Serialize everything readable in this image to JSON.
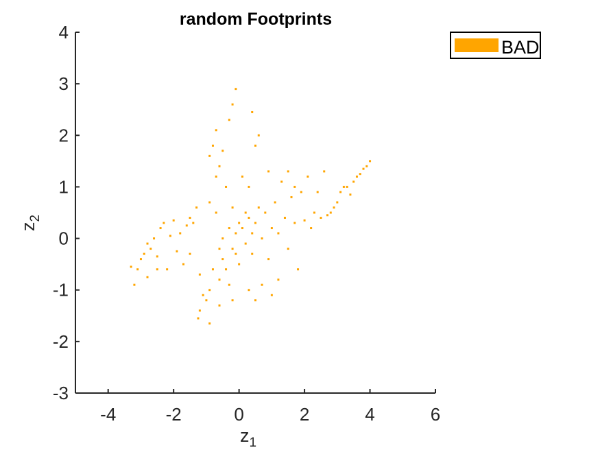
{
  "chart_data": {
    "type": "scatter",
    "title": "random Footprints",
    "xlabel": "z",
    "xlabel_sub": "1",
    "ylabel": "z",
    "ylabel_sub": "2",
    "xlim": [
      -5,
      6
    ],
    "ylim": [
      -3,
      4
    ],
    "xticks": [
      -4,
      -2,
      0,
      2,
      4,
      6
    ],
    "yticks": [
      -3,
      -2,
      -1,
      0,
      1,
      2,
      3,
      4
    ],
    "xtick_labels": [
      "-4",
      "-2",
      "0",
      "2",
      "4",
      "6"
    ],
    "ytick_labels": [
      "-3",
      "-2",
      "-1",
      "0",
      "1",
      "2",
      "3",
      "4"
    ],
    "grid": false,
    "legend": {
      "position": "top-right",
      "entries": [
        "BAD"
      ]
    },
    "series": [
      {
        "name": "BAD",
        "color": "#FFA500",
        "points": [
          [
            -3.3,
            -0.55
          ],
          [
            -3.2,
            -0.9
          ],
          [
            -3.1,
            -0.6
          ],
          [
            -3.0,
            -0.4
          ],
          [
            -2.9,
            -0.3
          ],
          [
            -2.8,
            -0.1
          ],
          [
            -2.8,
            -0.75
          ],
          [
            -2.7,
            -0.2
          ],
          [
            -2.6,
            0.0
          ],
          [
            -2.5,
            -0.35
          ],
          [
            -2.4,
            0.2
          ],
          [
            -2.3,
            0.3
          ],
          [
            -2.2,
            -0.6
          ],
          [
            -2.1,
            0.05
          ],
          [
            -2.0,
            0.35
          ],
          [
            -1.9,
            -0.25
          ],
          [
            -1.8,
            0.1
          ],
          [
            -1.7,
            -0.5
          ],
          [
            -1.6,
            0.25
          ],
          [
            -1.5,
            0.4
          ],
          [
            -1.4,
            0.3
          ],
          [
            -1.3,
            0.6
          ],
          [
            -1.2,
            -0.7
          ],
          [
            -1.1,
            -1.1
          ],
          [
            -1.2,
            -1.4
          ],
          [
            -1.25,
            -1.55
          ],
          [
            -1.0,
            -1.2
          ],
          [
            -0.9,
            -1.0
          ],
          [
            -0.8,
            -0.6
          ],
          [
            -0.6,
            -0.8
          ],
          [
            -0.5,
            -0.4
          ],
          [
            -0.3,
            -0.9
          ],
          [
            -0.2,
            -0.2
          ],
          [
            -0.1,
            0.1
          ],
          [
            0.0,
            -0.5
          ],
          [
            0.1,
            0.2
          ],
          [
            0.2,
            -0.1
          ],
          [
            0.3,
            0.4
          ],
          [
            0.4,
            -0.3
          ],
          [
            0.5,
            0.3
          ],
          [
            0.6,
            0.6
          ],
          [
            0.7,
            0.0
          ],
          [
            0.8,
            0.5
          ],
          [
            0.9,
            -0.4
          ],
          [
            1.0,
            0.2
          ],
          [
            1.1,
            0.7
          ],
          [
            1.2,
            0.1
          ],
          [
            1.4,
            0.4
          ],
          [
            1.5,
            -0.2
          ],
          [
            1.6,
            0.8
          ],
          [
            1.7,
            0.3
          ],
          [
            1.8,
            -0.6
          ],
          [
            1.9,
            0.9
          ],
          [
            2.0,
            0.35
          ],
          [
            2.1,
            1.2
          ],
          [
            2.2,
            0.2
          ],
          [
            2.3,
            0.5
          ],
          [
            2.4,
            0.9
          ],
          [
            2.5,
            0.4
          ],
          [
            2.6,
            1.3
          ],
          [
            2.7,
            0.45
          ],
          [
            2.8,
            0.5
          ],
          [
            2.9,
            0.6
          ],
          [
            3.0,
            0.7
          ],
          [
            3.1,
            0.9
          ],
          [
            3.2,
            1.0
          ],
          [
            3.3,
            1.0
          ],
          [
            3.4,
            0.85
          ],
          [
            3.5,
            1.1
          ],
          [
            3.6,
            1.2
          ],
          [
            3.7,
            1.25
          ],
          [
            3.8,
            1.35
          ],
          [
            3.9,
            1.4
          ],
          [
            4.0,
            1.5
          ],
          [
            -0.9,
            1.6
          ],
          [
            -0.8,
            1.8
          ],
          [
            -0.7,
            2.1
          ],
          [
            -0.6,
            1.4
          ],
          [
            -0.5,
            1.7
          ],
          [
            -0.7,
            1.2
          ],
          [
            -0.4,
            1.0
          ],
          [
            -0.3,
            2.3
          ],
          [
            -0.2,
            2.6
          ],
          [
            -0.1,
            2.9
          ],
          [
            0.4,
            2.45
          ],
          [
            0.5,
            1.8
          ],
          [
            0.6,
            2.0
          ],
          [
            0.1,
            1.2
          ],
          [
            0.3,
            1.0
          ],
          [
            -0.2,
            0.6
          ],
          [
            1.3,
            1.1
          ],
          [
            1.5,
            1.3
          ],
          [
            1.7,
            1.0
          ],
          [
            0.9,
            1.3
          ],
          [
            0.7,
            -0.9
          ],
          [
            0.5,
            -1.2
          ],
          [
            0.3,
            -1.0
          ],
          [
            -0.2,
            -1.2
          ],
          [
            -0.6,
            -1.3
          ],
          [
            -0.9,
            -1.65
          ],
          [
            1.2,
            -0.8
          ],
          [
            1.0,
            -1.1
          ],
          [
            -0.5,
            0.0
          ],
          [
            -0.3,
            0.2
          ],
          [
            0.0,
            0.3
          ],
          [
            0.2,
            0.5
          ],
          [
            -0.1,
            -0.3
          ],
          [
            0.4,
            0.1
          ],
          [
            -0.4,
            -0.6
          ],
          [
            -0.6,
            -0.2
          ],
          [
            -0.7,
            0.5
          ],
          [
            -0.9,
            0.7
          ],
          [
            -1.5,
            -0.3
          ],
          [
            -2.5,
            -0.6
          ]
        ]
      }
    ]
  }
}
